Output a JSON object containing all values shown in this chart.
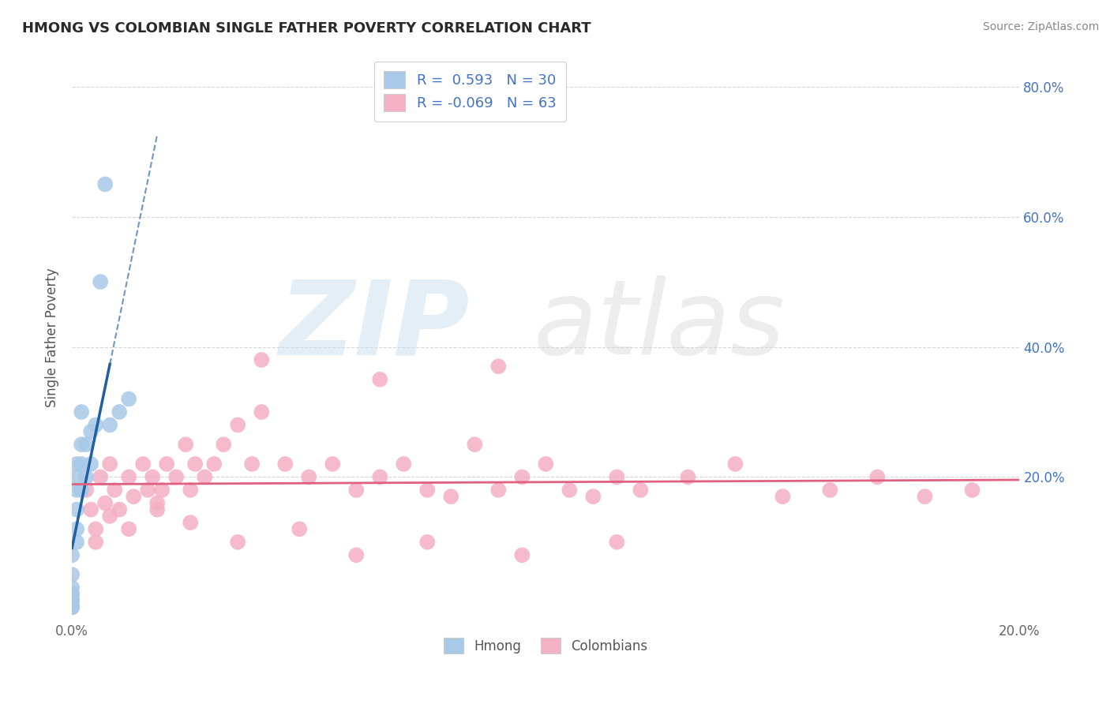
{
  "title": "HMONG VS COLOMBIAN SINGLE FATHER POVERTY CORRELATION CHART",
  "source": "Source: ZipAtlas.com",
  "ylabel": "Single Father Poverty",
  "xlim": [
    0.0,
    0.2
  ],
  "ylim": [
    -0.02,
    0.85
  ],
  "hmong_R": 0.593,
  "hmong_N": 30,
  "colombian_R": -0.069,
  "colombian_N": 63,
  "hmong_color": "#a8c8e8",
  "colombian_color": "#f4b0c4",
  "hmong_line_color": "#2060a0",
  "colombian_line_color": "#e06080",
  "legend_color": "#4472c4",
  "hmong_scatter_x": [
    0.0,
    0.0,
    0.0,
    0.0,
    0.0,
    0.0,
    0.0,
    0.0,
    0.0,
    0.0,
    0.001,
    0.001,
    0.001,
    0.001,
    0.001,
    0.001,
    0.002,
    0.002,
    0.002,
    0.002,
    0.003,
    0.003,
    0.004,
    0.004,
    0.005,
    0.006,
    0.007,
    0.008,
    0.01,
    0.012
  ],
  "hmong_scatter_y": [
    0.0,
    0.0,
    0.0,
    0.01,
    0.01,
    0.02,
    0.02,
    0.03,
    0.05,
    0.08,
    0.1,
    0.12,
    0.15,
    0.18,
    0.2,
    0.22,
    0.18,
    0.22,
    0.25,
    0.3,
    0.2,
    0.25,
    0.22,
    0.27,
    0.28,
    0.5,
    0.65,
    0.28,
    0.3,
    0.32
  ],
  "colombian_scatter_x": [
    0.003,
    0.004,
    0.005,
    0.006,
    0.007,
    0.008,
    0.009,
    0.01,
    0.012,
    0.013,
    0.015,
    0.016,
    0.017,
    0.018,
    0.019,
    0.02,
    0.022,
    0.024,
    0.025,
    0.026,
    0.028,
    0.03,
    0.032,
    0.035,
    0.038,
    0.04,
    0.045,
    0.05,
    0.055,
    0.06,
    0.065,
    0.07,
    0.075,
    0.08,
    0.085,
    0.09,
    0.095,
    0.1,
    0.105,
    0.11,
    0.115,
    0.12,
    0.13,
    0.14,
    0.15,
    0.16,
    0.17,
    0.18,
    0.19,
    0.005,
    0.008,
    0.012,
    0.018,
    0.025,
    0.035,
    0.048,
    0.06,
    0.075,
    0.095,
    0.115,
    0.04,
    0.065,
    0.09
  ],
  "colombian_scatter_y": [
    0.18,
    0.15,
    0.12,
    0.2,
    0.16,
    0.22,
    0.18,
    0.15,
    0.2,
    0.17,
    0.22,
    0.18,
    0.2,
    0.16,
    0.18,
    0.22,
    0.2,
    0.25,
    0.18,
    0.22,
    0.2,
    0.22,
    0.25,
    0.28,
    0.22,
    0.3,
    0.22,
    0.2,
    0.22,
    0.18,
    0.2,
    0.22,
    0.18,
    0.17,
    0.25,
    0.18,
    0.2,
    0.22,
    0.18,
    0.17,
    0.2,
    0.18,
    0.2,
    0.22,
    0.17,
    0.18,
    0.2,
    0.17,
    0.18,
    0.1,
    0.14,
    0.12,
    0.15,
    0.13,
    0.1,
    0.12,
    0.08,
    0.1,
    0.08,
    0.1,
    0.38,
    0.35,
    0.37
  ],
  "background_color": "#ffffff",
  "grid_color": "#cccccc"
}
